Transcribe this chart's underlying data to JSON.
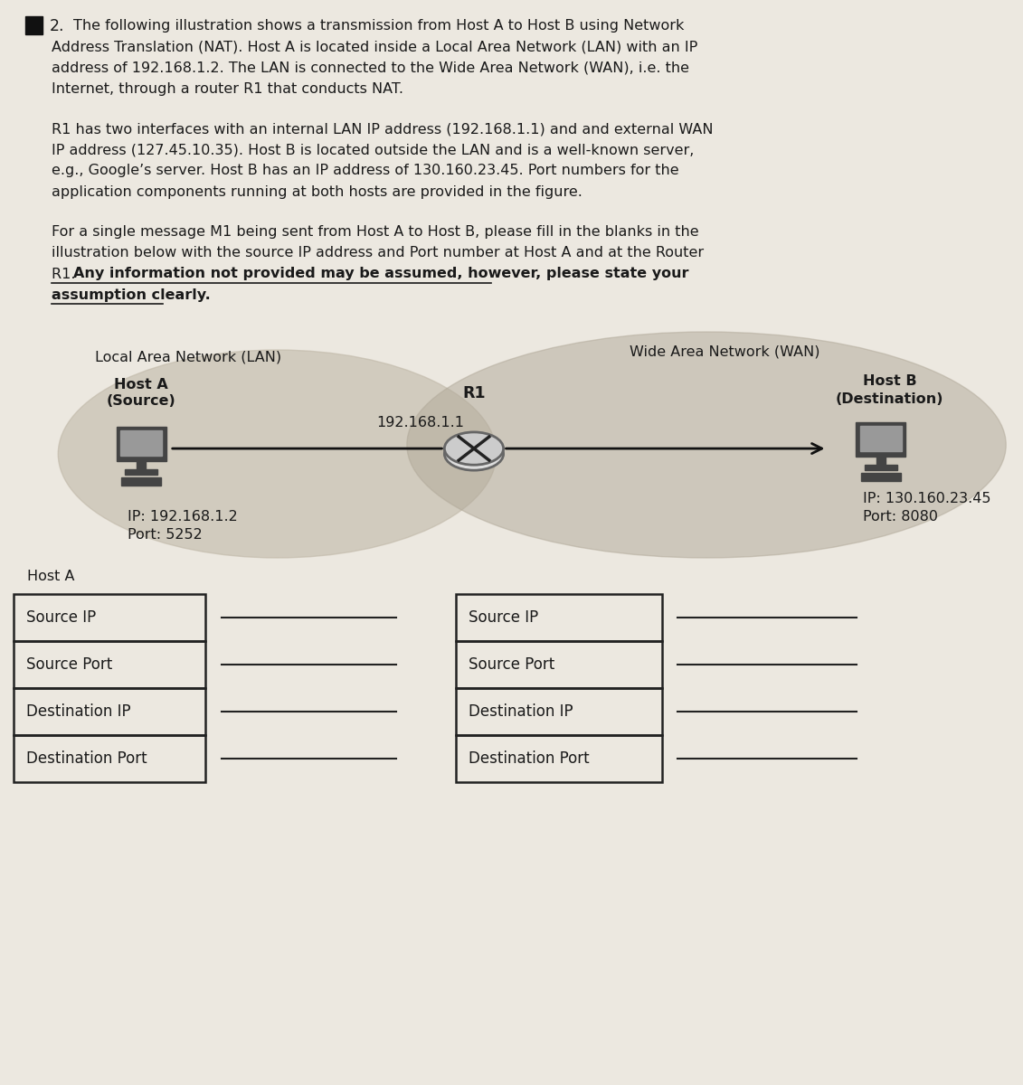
{
  "page_bg": "#ece8e0",
  "title_number": "2.",
  "paragraph1_lines": [
    "The following illustration shows a transmission from Host A to Host B using Network",
    "Address Translation (NAT). Host A is located inside a Local Area Network (LAN) with an IP",
    "address of 192.168.1.2. The LAN is connected to the Wide Area Network (WAN), i.e. the",
    "Internet, through a router R1 that conducts NAT."
  ],
  "paragraph2_lines": [
    "R1 has two interfaces with an internal LAN IP address (192.168.1.1) and and external WAN",
    "IP address (127.45.10.35). Host B is located outside the LAN and is a well-known server,",
    "e.g., Google’s server. Host B has an IP address of 130.160.23.45. Port numbers for the",
    "application components running at both hosts are provided in the figure."
  ],
  "paragraph3_normal_lines": [
    "For a single message M1 being sent from Host A to Host B, please fill in the blanks in the",
    "illustration below with the source IP address and Port number at Host A and at the Router"
  ],
  "paragraph3_r1_normal": "R1. ",
  "paragraph3_bold_line1": "Any information not provided may be assumed, however, please state your",
  "paragraph3_bold_line2": "assumption clearly.",
  "lan_label": "Local Area Network (LAN)",
  "wan_label": "Wide Area Network (WAN)",
  "host_a_title": "Host A",
  "host_a_subtitle": "(Source)",
  "r1_label": "R1",
  "r1_ip_label": "192.168.1.1",
  "host_a_ip": "IP: 192.168.1.2",
  "host_a_port": "Port: 5252",
  "host_b_title": "Host B",
  "host_b_subtitle": "(Destination)",
  "host_b_ip": "IP: 130.160.23.45",
  "host_b_port": "Port: 8080",
  "host_a_table_label": "Host A",
  "table_rows": [
    "Source IP",
    "Source Port",
    "Destination IP",
    "Destination Port"
  ],
  "text_color": "#1a1a1a",
  "table_border_color": "#222222",
  "ellipse_lan_color": "#c0b8a8",
  "ellipse_wan_color": "#b0a898",
  "arrow_color": "#111111",
  "font_size_body": 11.5,
  "font_size_table": 12
}
